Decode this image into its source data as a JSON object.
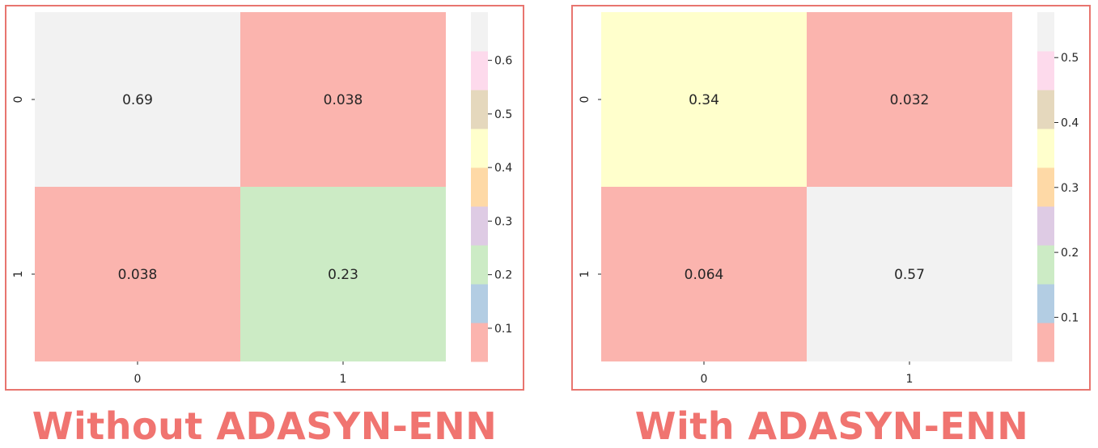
{
  "chart_data": [
    {
      "type": "heatmap",
      "x_categories": [
        "0",
        "1"
      ],
      "y_categories": [
        "0",
        "1"
      ],
      "values": [
        [
          0.69,
          0.038
        ],
        [
          0.038,
          0.23
        ]
      ],
      "annotations": [
        [
          "0.69",
          "0.038"
        ],
        [
          "0.038",
          "0.23"
        ]
      ],
      "colorbar": {
        "min": 0.038,
        "max": 0.69,
        "ticks": [
          0.1,
          0.2,
          0.3,
          0.4,
          0.5,
          0.6
        ]
      },
      "caption": "Without ADASYN-ENN"
    },
    {
      "type": "heatmap",
      "x_categories": [
        "0",
        "1"
      ],
      "y_categories": [
        "0",
        "1"
      ],
      "values": [
        [
          0.34,
          0.032
        ],
        [
          0.064,
          0.57
        ]
      ],
      "annotations": [
        [
          "0.34",
          "0.032"
        ],
        [
          "0.064",
          "0.57"
        ]
      ],
      "colorbar": {
        "min": 0.032,
        "max": 0.57,
        "ticks": [
          0.1,
          0.2,
          0.3,
          0.4,
          0.5
        ]
      },
      "caption": "With ADASYN-ENN"
    }
  ],
  "colormap": {
    "name": "Pastel1",
    "colors": [
      "#fbb4ae",
      "#b3cde3",
      "#ccebc5",
      "#decbe4",
      "#fed9a6",
      "#ffffcc",
      "#e5d8bd",
      "#fddaec",
      "#f2f2f2"
    ]
  },
  "frame_color": "#e8756f",
  "caption_color": "#f07470"
}
